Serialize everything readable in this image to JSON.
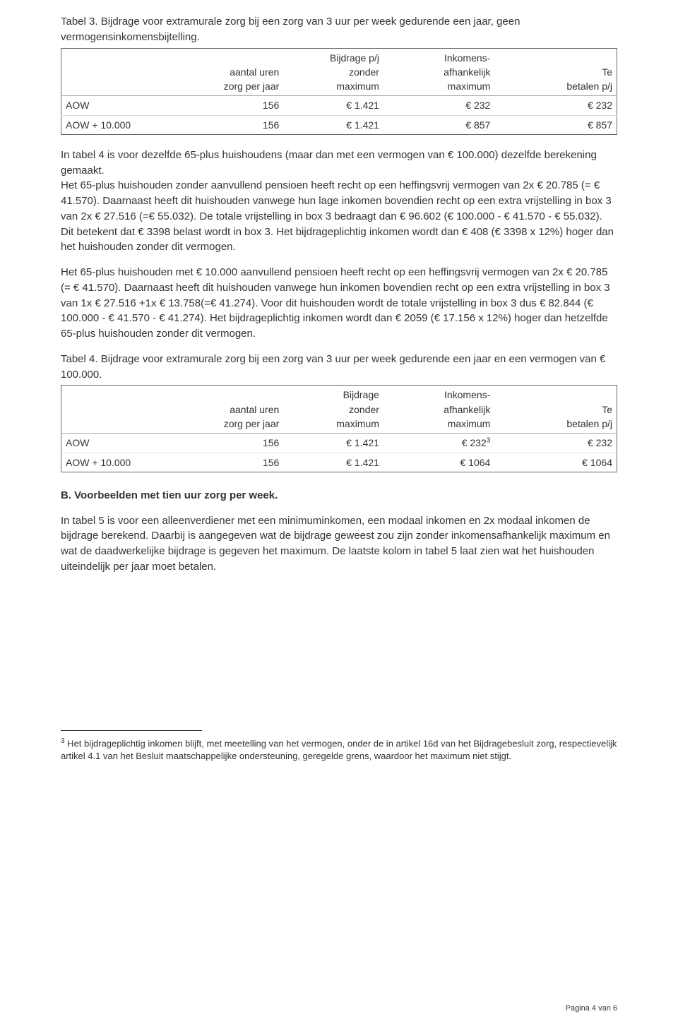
{
  "table3": {
    "caption": "Tabel 3. Bijdrage voor extramurale zorg bij een zorg van 3 uur per week gedurende een jaar, geen vermogensinkomensbijtelling.",
    "headers": {
      "col1": "",
      "col2": "aantal uren zorg per jaar",
      "col3": "Bijdrage p/j zonder maximum",
      "col4": "Inkomens-afhankelijk maximum",
      "col5": "Te betalen p/j"
    },
    "rows": [
      {
        "label": "AOW",
        "c2": "156",
        "c3": "€ 1.421",
        "c4": "€ 232",
        "c5": "€ 232"
      },
      {
        "label": "AOW + 10.000",
        "c2": "156",
        "c3": "€ 1.421",
        "c4": "€ 857",
        "c5": "€ 857"
      }
    ]
  },
  "para1": "In tabel 4 is voor dezelfde 65-plus huishoudens (maar dan met een vermogen van € 100.000) dezelfde berekening gemaakt.",
  "para2": "Het 65-plus huishouden zonder aanvullend pensioen heeft recht op een heffingsvrij vermogen van 2x € 20.785 (= € 41.570). Daarnaast heeft dit huishouden vanwege hun lage inkomen bovendien recht op een extra vrijstelling in box 3 van 2x € 27.516 (=€ 55.032). De totale vrijstelling in box 3 bedraagt dan € 96.602 (€ 100.000 - € 41.570 - € 55.032). Dit betekent dat € 3398 belast wordt in box 3. Het bijdrageplichtig inkomen wordt dan € 408 (€ 3398 x 12%) hoger dan het huishouden zonder dit vermogen.",
  "para3": "Het 65-plus huishouden met € 10.000 aanvullend pensioen heeft recht op een heffingsvrij vermogen van 2x € 20.785 (= € 41.570). Daarnaast heeft dit huishouden vanwege hun inkomen bovendien recht op een extra vrijstelling in box 3 van 1x € 27.516 +1x € 13.758(=€ 41.274). Voor dit huishouden wordt de totale vrijstelling in box 3 dus € 82.844 (€ 100.000 - € 41.570 - € 41.274). Het bijdrageplichtig inkomen wordt dan € 2059 (€ 17.156 x 12%) hoger dan hetzelfde 65-plus huishouden zonder dit vermogen.",
  "table4": {
    "caption": "Tabel 4. Bijdrage voor extramurale zorg bij een zorg van 3 uur per week gedurende een jaar en een vermogen van € 100.000.",
    "headers": {
      "col1": "",
      "col2": "aantal uren zorg per jaar",
      "col3": "Bijdrage zonder maximum",
      "col4": "Inkomens-afhankelijk maximum",
      "col5": "Te betalen p/j"
    },
    "rows": [
      {
        "label": "AOW",
        "c2": "156",
        "c3": "€ 1.421",
        "c4": "€ 232",
        "sup": "3",
        "c5": "€ 232"
      },
      {
        "label": "AOW + 10.000",
        "c2": "156",
        "c3": "€ 1.421",
        "c4": "€ 1064",
        "c5": "€ 1064"
      }
    ]
  },
  "section_b_title": "B.   Voorbeelden met tien uur zorg per week.",
  "para4": "In tabel 5 is voor een alleenverdiener met een minimuminkomen, een modaal inkomen en 2x modaal inkomen de bijdrage berekend. Daarbij is aangegeven wat de bijdrage geweest zou zijn zonder inkomensafhankelijk maximum en wat de daadwerkelijke bijdrage is gegeven het maximum. De laatste kolom in tabel 5 laat zien wat het huishouden uiteindelijk per jaar moet betalen.",
  "footnote_marker": "3",
  "footnote": " Het bijdrageplichtig inkomen blijft, met meetelling van het vermogen, onder de in artikel 16d van het Bijdragebesluit zorg, respectievelijk artikel 4.1 van het Besluit maatschappelijke ondersteuning, geregelde grens, waardoor het maximum niet stijgt.",
  "pagenum": "Pagina 4 van 6"
}
